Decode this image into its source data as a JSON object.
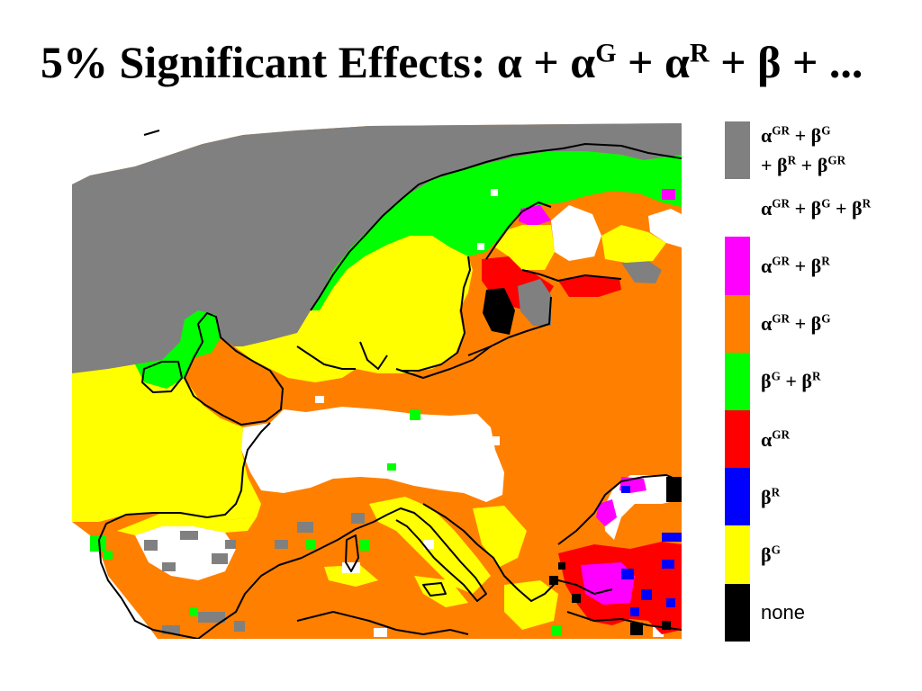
{
  "title": [
    {
      "text": "5% Significant Effects: α + α",
      "sup": "G"
    },
    {
      "text": " + α",
      "sup": "R"
    },
    {
      "text": " + β + ..."
    }
  ],
  "legend": [
    {
      "color": "#808080",
      "lines": [
        [
          {
            "text": "α",
            "sup": "GR"
          },
          {
            "text": " + β",
            "sup": "G"
          }
        ],
        [
          {
            "text": "+ β",
            "sup": "R"
          },
          {
            "text": " + β",
            "sup": "GR"
          }
        ]
      ]
    },
    {
      "color": "#ffffff",
      "lines": [
        [
          {
            "text": "α",
            "sup": "GR"
          },
          {
            "text": " + β",
            "sup": "G"
          },
          {
            "text": " + β",
            "sup": "R"
          }
        ]
      ]
    },
    {
      "color": "#ff00ff",
      "lines": [
        [
          {
            "text": "α",
            "sup": "GR"
          },
          {
            "text": " + β",
            "sup": "R"
          }
        ]
      ]
    },
    {
      "color": "#ff8000",
      "lines": [
        [
          {
            "text": "α",
            "sup": "GR"
          },
          {
            "text": " + β",
            "sup": "G"
          }
        ]
      ]
    },
    {
      "color": "#00ff00",
      "lines": [
        [
          {
            "text": "β",
            "sup": "G"
          },
          {
            "text": " + β",
            "sup": "R"
          }
        ]
      ]
    },
    {
      "color": "#ff0000",
      "lines": [
        [
          {
            "text": "α",
            "sup": "GR"
          }
        ]
      ]
    },
    {
      "color": "#0000ff",
      "lines": [
        [
          {
            "text": "β",
            "sup": "R"
          }
        ]
      ]
    },
    {
      "color": "#ffff00",
      "lines": [
        [
          {
            "text": "β",
            "sup": "G"
          }
        ]
      ]
    },
    {
      "color": "#000000",
      "lines": [
        [
          {
            "text": "none"
          }
        ]
      ]
    }
  ]
}
